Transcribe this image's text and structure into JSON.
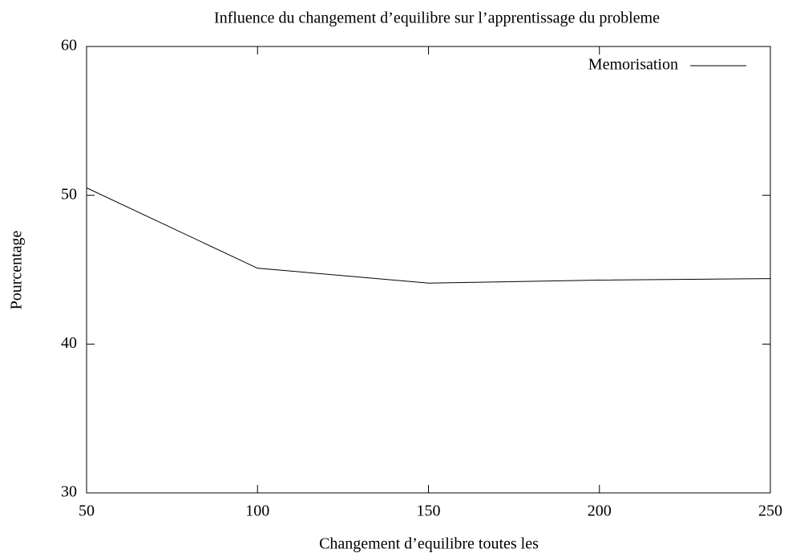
{
  "chart_data": {
    "type": "line",
    "title": "Influence du changement d’equilibre sur l’apprentissage du probleme",
    "x_label": "Changement d’equilibre toutes les",
    "y_label": "Pourcentage",
    "x": [
      50,
      100,
      150,
      200,
      250
    ],
    "series": [
      {
        "name": "Memorisation",
        "color": "#000000",
        "values": [
          50.5,
          45.1,
          44.1,
          44.3,
          44.4
        ]
      }
    ],
    "xlim": [
      50,
      250
    ],
    "xticks": [
      50,
      100,
      150,
      200,
      250
    ],
    "ylim": [
      30,
      60
    ],
    "yticks": [
      30,
      40,
      50,
      60
    ],
    "legend": "upper right",
    "grid": false
  }
}
